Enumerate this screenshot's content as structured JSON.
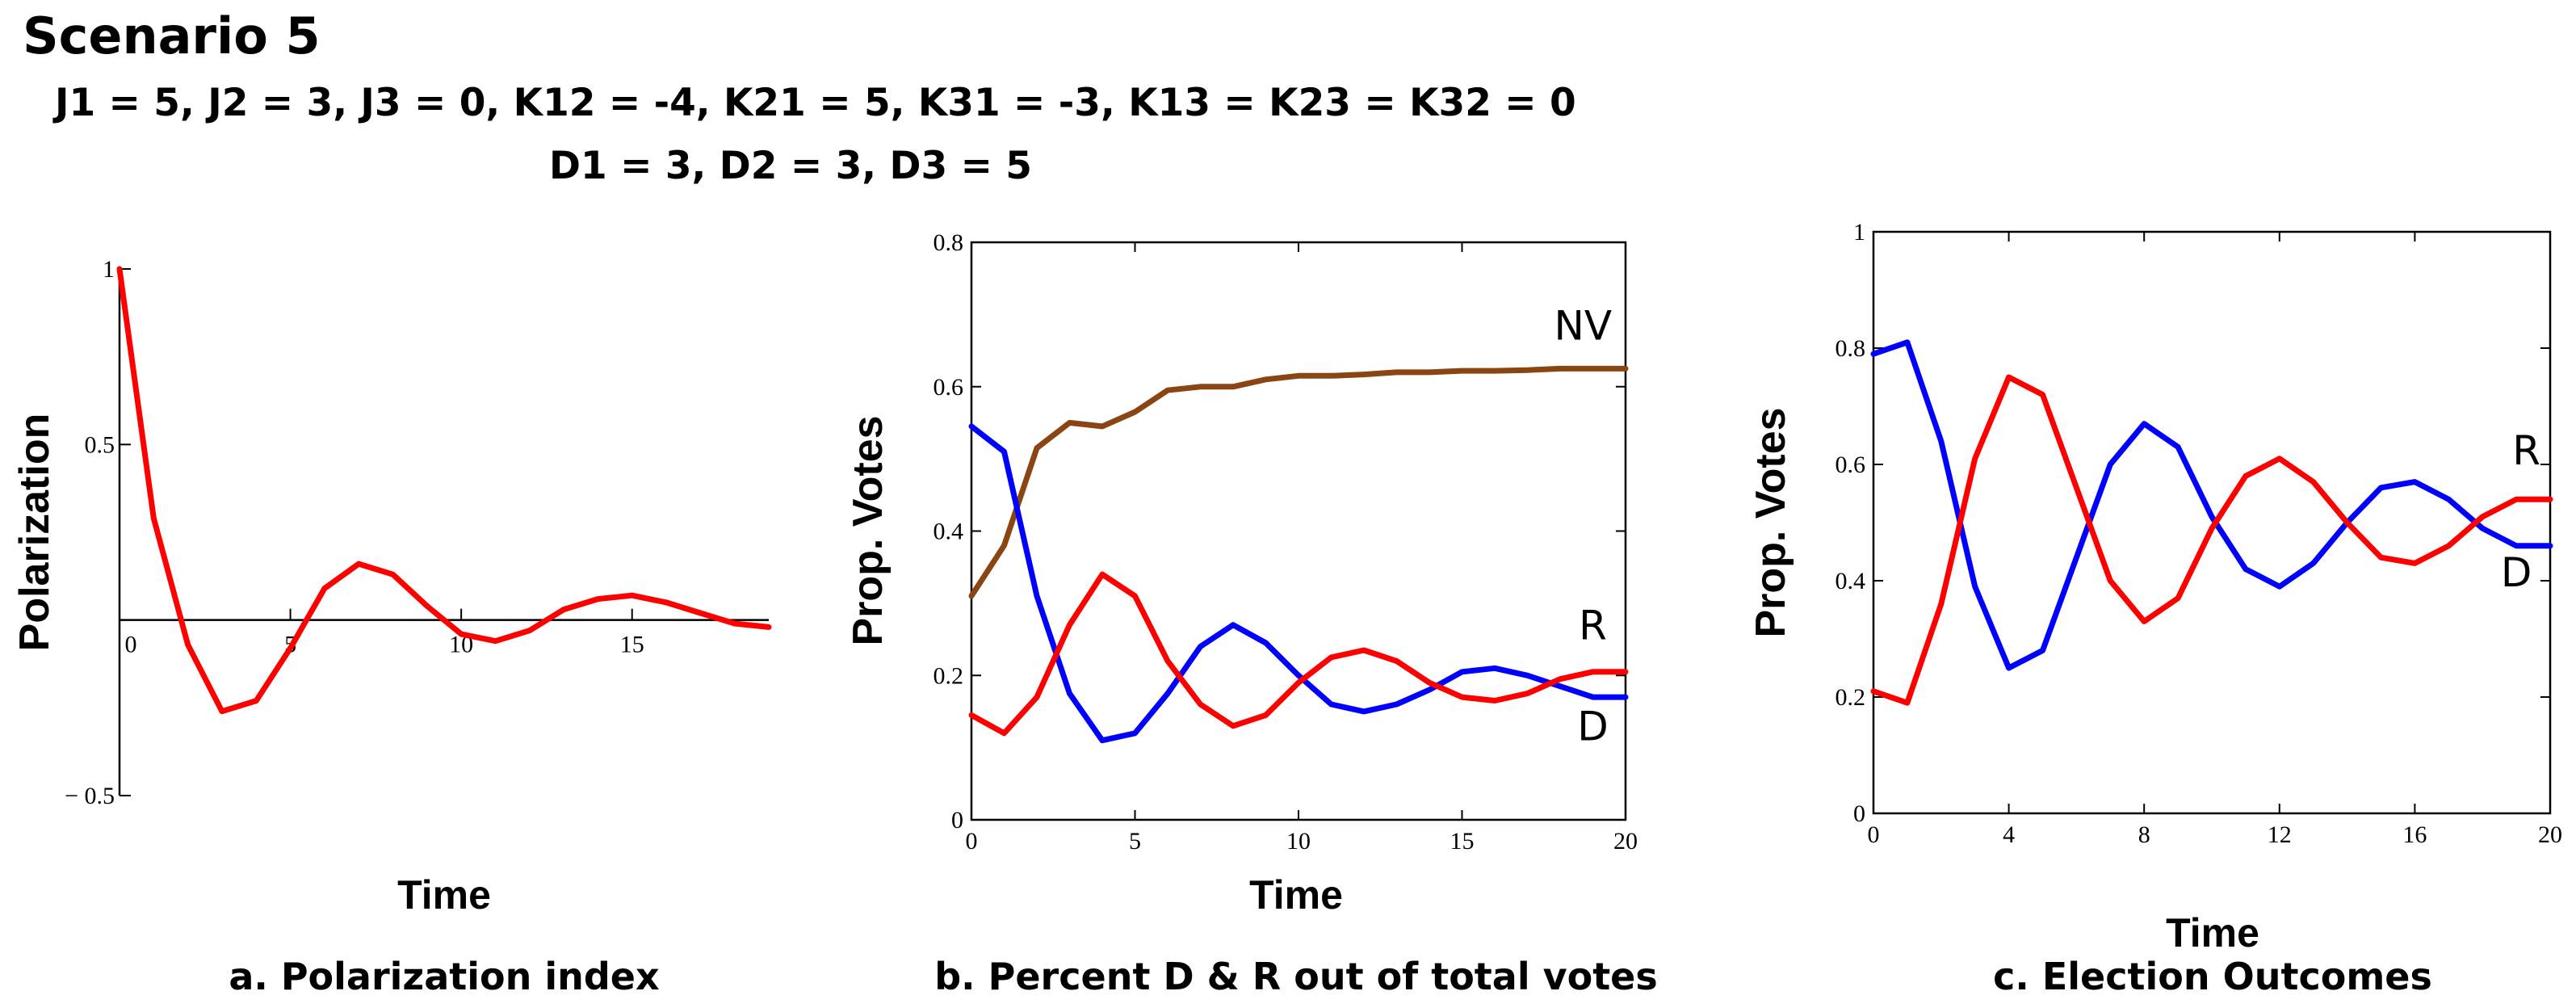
{
  "header": {
    "title": "Scenario 5",
    "params_line_1": "J1 = 5, J2 = 3, J3 = 0, K12 = -4, K21 = 5, K31 = -3, K13 = K23 = K32 = 0",
    "params_line_2": "D1 = 3, D2 = 3, D3 = 5"
  },
  "colors": {
    "red": "#ff0000",
    "blue": "#0000ff",
    "brown": "#8b4513",
    "axis": "#000000"
  },
  "chart_data": [
    {
      "type": "line",
      "caption": "a. Polarization index",
      "xlabel": "Time",
      "ylabel": "Polarization",
      "xlim": [
        0,
        19
      ],
      "ylim": [
        -0.5,
        1
      ],
      "xticks": [
        0,
        5,
        10,
        15
      ],
      "xtick_labels": [
        "0",
        "5",
        "10",
        "15"
      ],
      "yticks": [
        -0.5,
        0.5,
        1
      ],
      "ytick_labels": [
        "− 0.5",
        "0.5",
        "1"
      ],
      "series": [
        {
          "name": "Polarization",
          "color": "red",
          "x": [
            0,
            1,
            2,
            3,
            4,
            5,
            6,
            7,
            8,
            9,
            10,
            11,
            12,
            13,
            14,
            15,
            16,
            17,
            18,
            19
          ],
          "y": [
            1,
            0.29,
            -0.07,
            -0.26,
            -0.23,
            -0.08,
            0.09,
            0.16,
            0.13,
            0.04,
            -0.04,
            -0.06,
            -0.03,
            0.03,
            0.06,
            0.07,
            0.05,
            0.02,
            -0.01,
            -0.02
          ]
        }
      ],
      "annotations": []
    },
    {
      "type": "line",
      "caption": "b. Percent D & R out of total votes",
      "xlabel": "Time",
      "ylabel": "Prop.  Votes",
      "xlim": [
        0,
        20
      ],
      "ylim": [
        0,
        0.8
      ],
      "xticks": [
        0,
        5,
        10,
        15,
        20
      ],
      "xtick_labels": [
        "0",
        "5",
        "10",
        "15",
        "20"
      ],
      "yticks": [
        0,
        0.2,
        0.4,
        0.6,
        0.8
      ],
      "ytick_labels": [
        "0",
        "0.2",
        "0.4",
        "0.6",
        "0.8"
      ],
      "series": [
        {
          "name": "NV",
          "color": "brown",
          "x": [
            0,
            1,
            2,
            3,
            4,
            5,
            6,
            7,
            8,
            9,
            10,
            11,
            12,
            13,
            14,
            15,
            16,
            17,
            18,
            19,
            20
          ],
          "y": [
            0.31,
            0.38,
            0.515,
            0.55,
            0.545,
            0.565,
            0.595,
            0.6,
            0.6,
            0.61,
            0.615,
            0.615,
            0.617,
            0.62,
            0.62,
            0.622,
            0.622,
            0.623,
            0.625,
            0.625,
            0.625
          ]
        },
        {
          "name": "D",
          "color": "blue",
          "x": [
            0,
            1,
            2,
            3,
            4,
            5,
            6,
            7,
            8,
            9,
            10,
            11,
            12,
            13,
            14,
            15,
            16,
            17,
            18,
            19,
            20
          ],
          "y": [
            0.545,
            0.51,
            0.31,
            0.175,
            0.11,
            0.12,
            0.175,
            0.24,
            0.27,
            0.245,
            0.2,
            0.16,
            0.15,
            0.16,
            0.18,
            0.205,
            0.21,
            0.2,
            0.185,
            0.17,
            0.17
          ]
        },
        {
          "name": "R",
          "color": "red",
          "x": [
            0,
            1,
            2,
            3,
            4,
            5,
            6,
            7,
            8,
            9,
            10,
            11,
            12,
            13,
            14,
            15,
            16,
            17,
            18,
            19,
            20
          ],
          "y": [
            0.145,
            0.12,
            0.17,
            0.27,
            0.34,
            0.31,
            0.22,
            0.16,
            0.13,
            0.145,
            0.19,
            0.225,
            0.235,
            0.22,
            0.19,
            0.17,
            0.165,
            0.175,
            0.195,
            0.205,
            0.205
          ]
        }
      ],
      "annotations": [
        {
          "text": "NV",
          "x": 18.7,
          "y": 0.665
        },
        {
          "text": "R",
          "x": 19.0,
          "y": 0.25
        },
        {
          "text": "D",
          "x": 19.0,
          "y": 0.11
        }
      ]
    },
    {
      "type": "line",
      "caption": "c. Election Outcomes",
      "xlabel": "Time",
      "ylabel": "Prop.  Votes",
      "xlim": [
        0,
        20
      ],
      "ylim": [
        0,
        1
      ],
      "xticks": [
        0,
        4,
        8,
        12,
        16,
        20
      ],
      "xtick_labels": [
        "0",
        "4",
        "8",
        "12",
        "16",
        "20"
      ],
      "yticks": [
        0,
        0.2,
        0.4,
        0.6,
        0.8,
        1
      ],
      "ytick_labels": [
        "0",
        "0.2",
        "0.4",
        "0.6",
        "0.8",
        "1"
      ],
      "series": [
        {
          "name": "D",
          "color": "blue",
          "x": [
            0,
            1,
            2,
            3,
            4,
            5,
            6,
            7,
            8,
            9,
            10,
            11,
            12,
            13,
            14,
            15,
            16,
            17,
            18,
            19,
            20
          ],
          "y": [
            0.79,
            0.81,
            0.64,
            0.39,
            0.25,
            0.28,
            0.44,
            0.6,
            0.67,
            0.63,
            0.51,
            0.42,
            0.39,
            0.43,
            0.5,
            0.56,
            0.57,
            0.54,
            0.49,
            0.46,
            0.46
          ]
        },
        {
          "name": "R",
          "color": "red",
          "x": [
            0,
            1,
            2,
            3,
            4,
            5,
            6,
            7,
            8,
            9,
            10,
            11,
            12,
            13,
            14,
            15,
            16,
            17,
            18,
            19,
            20
          ],
          "y": [
            0.21,
            0.19,
            0.36,
            0.61,
            0.75,
            0.72,
            0.56,
            0.4,
            0.33,
            0.37,
            0.49,
            0.58,
            0.61,
            0.57,
            0.5,
            0.44,
            0.43,
            0.46,
            0.51,
            0.54,
            0.54
          ]
        }
      ],
      "annotations": [
        {
          "text": "R",
          "x": 19.3,
          "y": 0.6
        },
        {
          "text": "D",
          "x": 19.0,
          "y": 0.39
        }
      ]
    }
  ]
}
